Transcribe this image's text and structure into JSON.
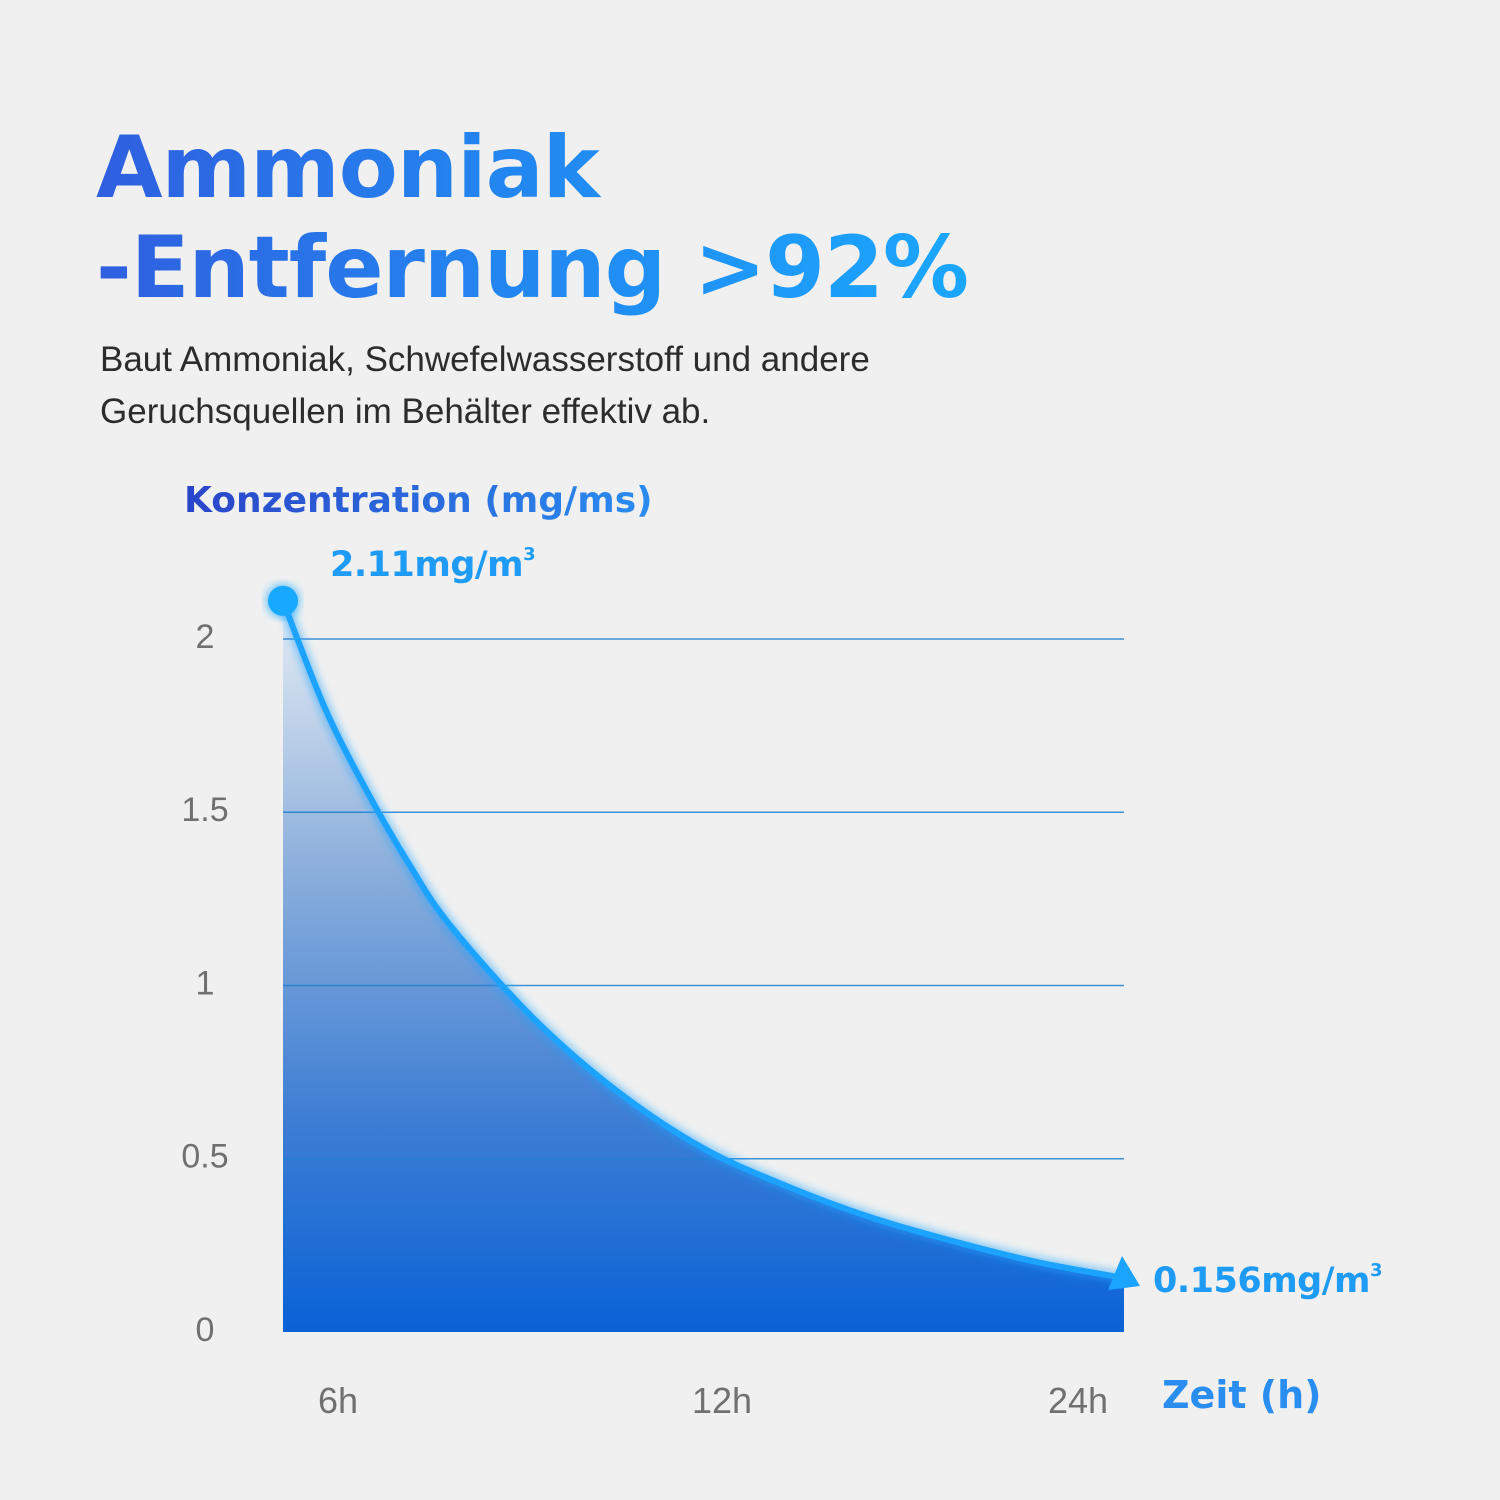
{
  "headline": {
    "line1": "Ammoniak",
    "line2": "-Entfernung >92%"
  },
  "subtitle": {
    "line1": "Baut Ammoniak, Schwefelwasserstoff und andere",
    "line2": "Geruchsquellen im Behälter effektiv ab."
  },
  "colors": {
    "accent_dark": "#2a45c8",
    "accent_light": "#1aa7ff",
    "fill_bottom": "#0a62d6",
    "grid": "#1e7fd0"
  },
  "chart_data": {
    "type": "area",
    "ylabel": "Konzentration (mg/ms)",
    "xlabel": "Zeit (h)",
    "ylim": [
      0,
      2
    ],
    "yticks": [
      "2",
      "1.5",
      "1",
      "0.5",
      "0"
    ],
    "ytick_values": [
      2,
      1.5,
      1,
      0.5,
      0
    ],
    "xticks": [
      "6h",
      "12h",
      "24h"
    ],
    "grid": true,
    "series": [
      {
        "points": [
          [
            0,
            2.11
          ],
          [
            0.05,
            1.8
          ],
          [
            0.1,
            1.56
          ],
          [
            0.15,
            1.35
          ],
          [
            0.2,
            1.17
          ],
          [
            0.3,
            0.9
          ],
          [
            0.4,
            0.69
          ],
          [
            0.5,
            0.53
          ],
          [
            0.6,
            0.42
          ],
          [
            0.7,
            0.33
          ],
          [
            0.8,
            0.26
          ],
          [
            0.9,
            0.2
          ],
          [
            1.0,
            0.156
          ]
        ]
      }
    ],
    "annotations": {
      "start": {
        "value": "2.11mg/m",
        "sup": "3"
      },
      "end": {
        "value": "0.156mg/m",
        "sup": "3"
      }
    }
  }
}
